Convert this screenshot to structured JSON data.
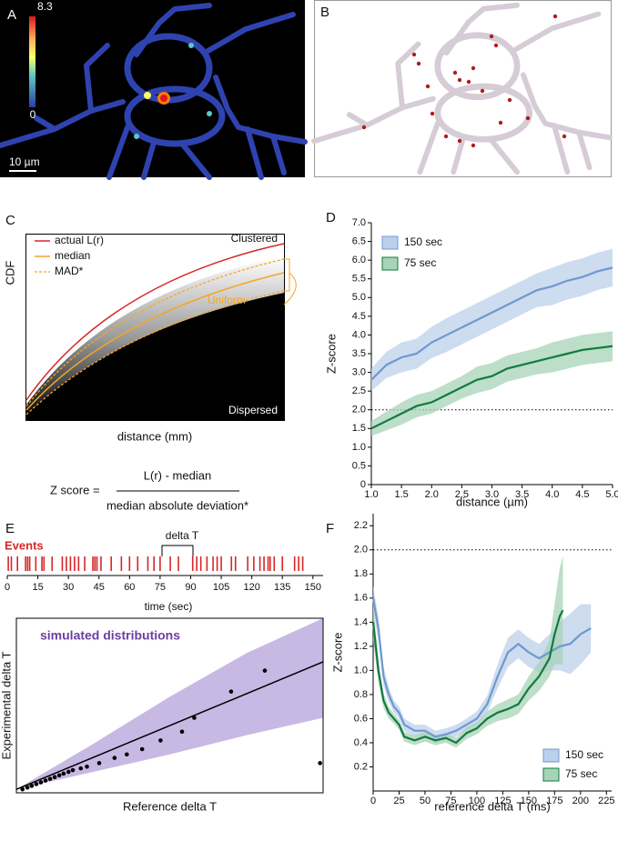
{
  "panel_a": {
    "label": "A",
    "colorbar_max": 8.3,
    "colorbar_min": 0,
    "scale_bar": "10 µm"
  },
  "panel_b": {
    "label": "B"
  },
  "panel_c": {
    "label": "C",
    "y_label": "CDF",
    "x_label": "distance (mm)",
    "legend": [
      "actual L(r)",
      "median",
      "MAD*"
    ],
    "regions": [
      "Clustered",
      "Uniform",
      "Dispersed"
    ],
    "formula": {
      "lhs": "Z score =",
      "numerator": "L(r) - median",
      "denominator": "median absolute deviation*"
    }
  },
  "chart_data": [
    {
      "type": "line",
      "panel": "D",
      "xlabel": "distance (µm)",
      "ylabel": "Z-score",
      "x": [
        1.0,
        1.25,
        1.5,
        1.75,
        2.0,
        2.25,
        2.5,
        2.75,
        3.0,
        3.25,
        3.5,
        3.75,
        4.0,
        4.25,
        4.5,
        4.75,
        5.0
      ],
      "xlim": [
        1,
        5
      ],
      "xticks": [
        {
          "value": 1,
          "label": "1.0"
        },
        1.5,
        {
          "value": 2,
          "label": "2.0"
        },
        2.5,
        {
          "value": 3,
          "label": "3.0"
        },
        3.5,
        {
          "value": 4,
          "label": "4.0"
        },
        4.5,
        {
          "value": 5,
          "label": "5.0"
        }
      ],
      "ylim": [
        0,
        7
      ],
      "yticks": [
        0,
        0.5,
        {
          "value": 1,
          "label": "1.0"
        },
        1.5,
        {
          "value": 2,
          "label": "2.0"
        },
        2.5,
        {
          "value": 3,
          "label": "3.0"
        },
        3.5,
        {
          "value": 4,
          "label": "4.0"
        },
        4.5,
        {
          "value": 5,
          "label": "5.0"
        },
        5.5,
        {
          "value": 6,
          "label": "6.0"
        },
        6.5,
        {
          "value": 7,
          "label": "7.0"
        }
      ],
      "reference_line": 2,
      "legend": "upper left",
      "series": [
        {
          "name": "150 sec",
          "color": "#6f98d0",
          "band_color": "#bcd0ea",
          "values": [
            2.8,
            3.2,
            3.4,
            3.5,
            3.8,
            4.0,
            4.2,
            4.4,
            4.6,
            4.8,
            5.0,
            5.2,
            5.3,
            5.45,
            5.55,
            5.7,
            5.8
          ],
          "errors": [
            0.3,
            0.35,
            0.4,
            0.4,
            0.42,
            0.45,
            0.45,
            0.45,
            0.45,
            0.45,
            0.45,
            0.45,
            0.5,
            0.5,
            0.5,
            0.5,
            0.5
          ]
        },
        {
          "name": "75 sec",
          "color": "#127a3f",
          "band_color": "#a7d3b7",
          "values": [
            1.5,
            1.7,
            1.9,
            2.1,
            2.2,
            2.4,
            2.6,
            2.8,
            2.9,
            3.1,
            3.2,
            3.3,
            3.4,
            3.5,
            3.6,
            3.65,
            3.7
          ],
          "errors": [
            0.2,
            0.25,
            0.3,
            0.3,
            0.3,
            0.3,
            0.3,
            0.35,
            0.35,
            0.35,
            0.35,
            0.35,
            0.4,
            0.4,
            0.4,
            0.4,
            0.4
          ]
        }
      ]
    },
    {
      "type": "event_raster",
      "panel": "E",
      "series_label": "Events",
      "annotation": "delta T",
      "xlabel": "time (sec)",
      "color": "#d62728",
      "x": [
        0.5,
        2,
        5,
        9,
        10,
        11,
        14,
        17,
        18,
        22,
        27,
        29,
        31,
        33,
        35,
        38,
        42,
        43,
        44,
        46,
        51,
        56,
        60,
        64,
        69,
        72,
        75,
        80,
        84,
        91,
        93,
        95,
        98,
        101,
        103,
        105,
        110,
        112,
        118,
        121,
        124,
        126,
        128,
        129,
        131,
        135,
        141,
        143,
        145
      ],
      "xlim": [
        0,
        155
      ],
      "xticks": [
        0,
        15,
        30,
        45,
        60,
        75,
        90,
        105,
        120,
        135,
        150
      ]
    },
    {
      "type": "simulation",
      "title": "simulated distributions",
      "xlabel": "Reference delta T",
      "ylabel": "Experimental delta T",
      "xlim": [
        0,
        100
      ],
      "ylim": [
        0,
        100
      ],
      "band": {
        "color": "#b9a8dc",
        "x": [
          0,
          25,
          50,
          75,
          100
        ],
        "lower": [
          2,
          12,
          22,
          33,
          43
        ],
        "upper": [
          2,
          28,
          55,
          80,
          100
        ]
      },
      "fit": {
        "color": "#000000",
        "x": [
          0,
          100
        ],
        "y": [
          2,
          75
        ]
      },
      "points": {
        "color": "#000000",
        "x": [
          2,
          3.6,
          5,
          6.5,
          8,
          9.5,
          11,
          12.5,
          14,
          15.4,
          17,
          18.4,
          21,
          23,
          27,
          32,
          36,
          41,
          47,
          54,
          58,
          70,
          81,
          99
        ],
        "y": [
          2,
          3,
          4,
          5,
          6,
          7,
          8,
          9,
          10,
          11,
          12,
          13,
          14,
          15,
          17,
          20,
          22,
          25,
          30,
          35,
          43,
          58,
          70,
          17
        ]
      }
    },
    {
      "type": "line",
      "panel": "F",
      "xlabel": "reference delta T (ms)",
      "ylabel": "Z-score",
      "xlim": [
        0,
        230
      ],
      "xticks": [
        0,
        25,
        50,
        75,
        100,
        125,
        150,
        175,
        200,
        225
      ],
      "ylim": [
        0,
        2.3
      ],
      "yticks": [
        0.2,
        0.4,
        0.6,
        0.8,
        {
          "value": 1,
          "label": "1.0"
        },
        1.2,
        1.4,
        1.6,
        1.8,
        {
          "value": 2,
          "label": "2.0"
        },
        2.2
      ],
      "reference_line": 2,
      "legend": "lower right",
      "series": [
        {
          "name": "150 sec",
          "color": "#6f98d0",
          "band_color": "#bcd0ea",
          "x": [
            0,
            5,
            10,
            15,
            20,
            25,
            30,
            40,
            50,
            60,
            70,
            80,
            90,
            100,
            110,
            120,
            130,
            140,
            150,
            160,
            170,
            180,
            190,
            200,
            210
          ],
          "values": [
            1.6,
            1.35,
            0.95,
            0.8,
            0.7,
            0.65,
            0.55,
            0.5,
            0.5,
            0.45,
            0.47,
            0.5,
            0.55,
            0.6,
            0.72,
            0.95,
            1.15,
            1.22,
            1.15,
            1.1,
            1.15,
            1.2,
            1.22,
            1.3,
            1.35
          ],
          "errors": [
            0.1,
            0.1,
            0.08,
            0.06,
            0.05,
            0.05,
            0.05,
            0.05,
            0.05,
            0.05,
            0.05,
            0.05,
            0.05,
            0.06,
            0.07,
            0.1,
            0.12,
            0.12,
            0.12,
            0.12,
            0.15,
            0.2,
            0.25,
            0.25,
            0.2
          ]
        },
        {
          "name": "75 sec",
          "color": "#127a3f",
          "band_color": "#a7d3b7",
          "x": [
            0,
            5,
            10,
            15,
            20,
            25,
            30,
            40,
            50,
            60,
            70,
            80,
            90,
            100,
            110,
            120,
            130,
            140,
            150,
            160,
            170,
            175,
            180,
            183
          ],
          "values": [
            1.4,
            1.0,
            0.75,
            0.65,
            0.6,
            0.55,
            0.45,
            0.42,
            0.45,
            0.42,
            0.44,
            0.4,
            0.48,
            0.52,
            0.6,
            0.65,
            0.68,
            0.72,
            0.85,
            0.95,
            1.1,
            1.3,
            1.45,
            1.5
          ],
          "errors": [
            0.15,
            0.1,
            0.06,
            0.05,
            0.04,
            0.04,
            0.04,
            0.04,
            0.04,
            0.04,
            0.04,
            0.04,
            0.05,
            0.05,
            0.06,
            0.07,
            0.08,
            0.08,
            0.1,
            0.12,
            0.15,
            0.25,
            0.4,
            0.45
          ]
        }
      ]
    }
  ]
}
